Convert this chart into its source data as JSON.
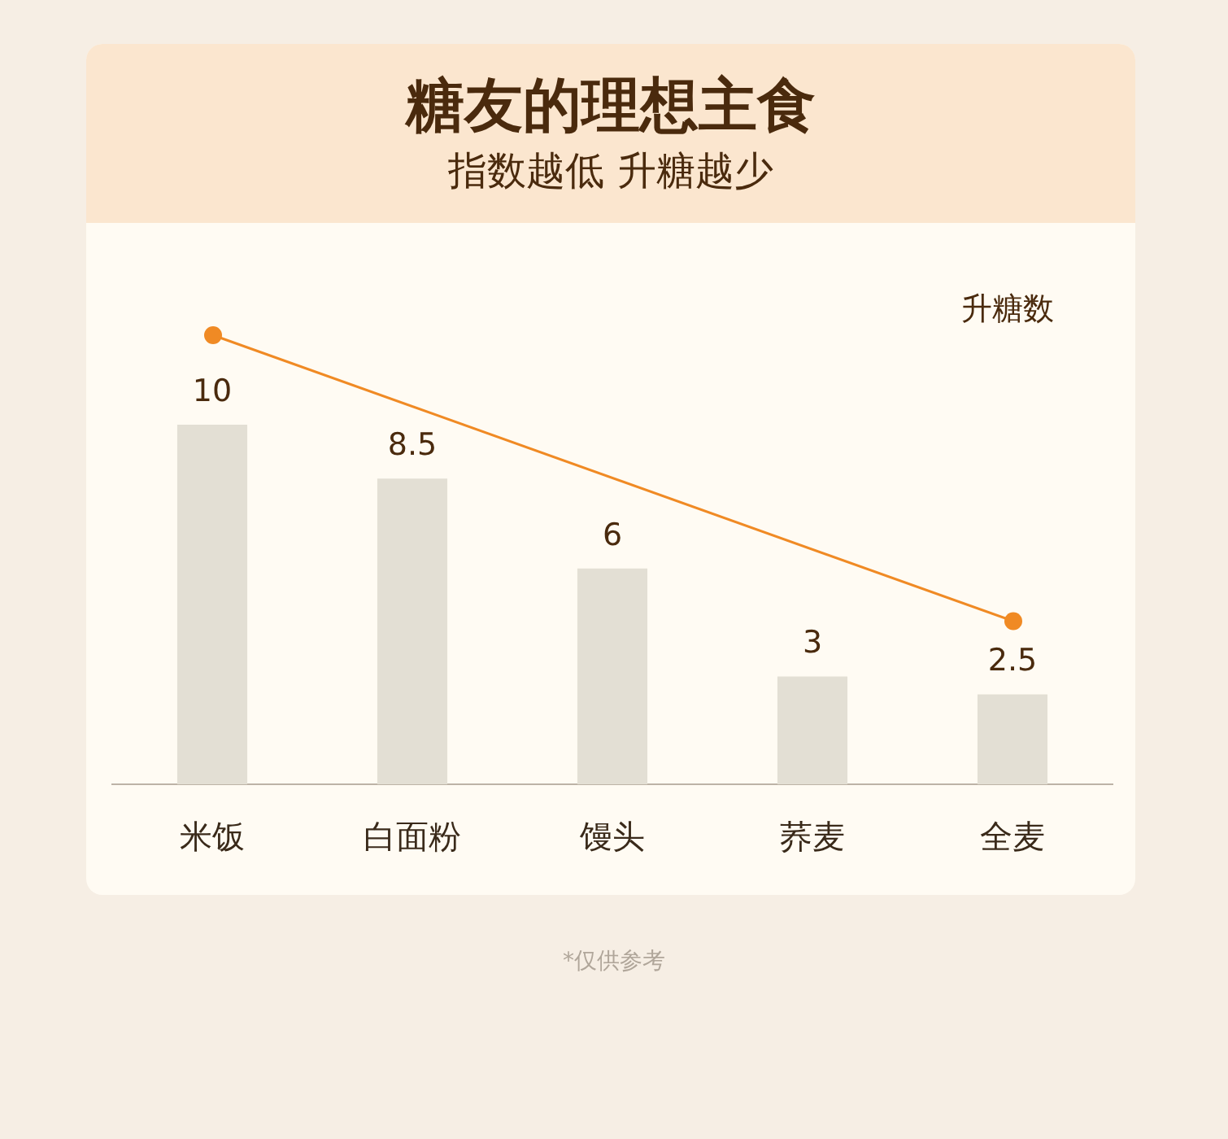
{
  "chart_data": {
    "type": "bar",
    "title": "糖友的理想主食",
    "subtitle": "指数越低 升糖越少",
    "ylabel": "升糖数",
    "categories": [
      "米饭",
      "白面粉",
      "馒头",
      "荞麦",
      "全麦"
    ],
    "values": [
      10,
      8.5,
      6,
      3,
      2.5
    ],
    "color": "#e3dfd4",
    "data_labels": true,
    "annotations": [
      "*仅供参考"
    ]
  }
}
